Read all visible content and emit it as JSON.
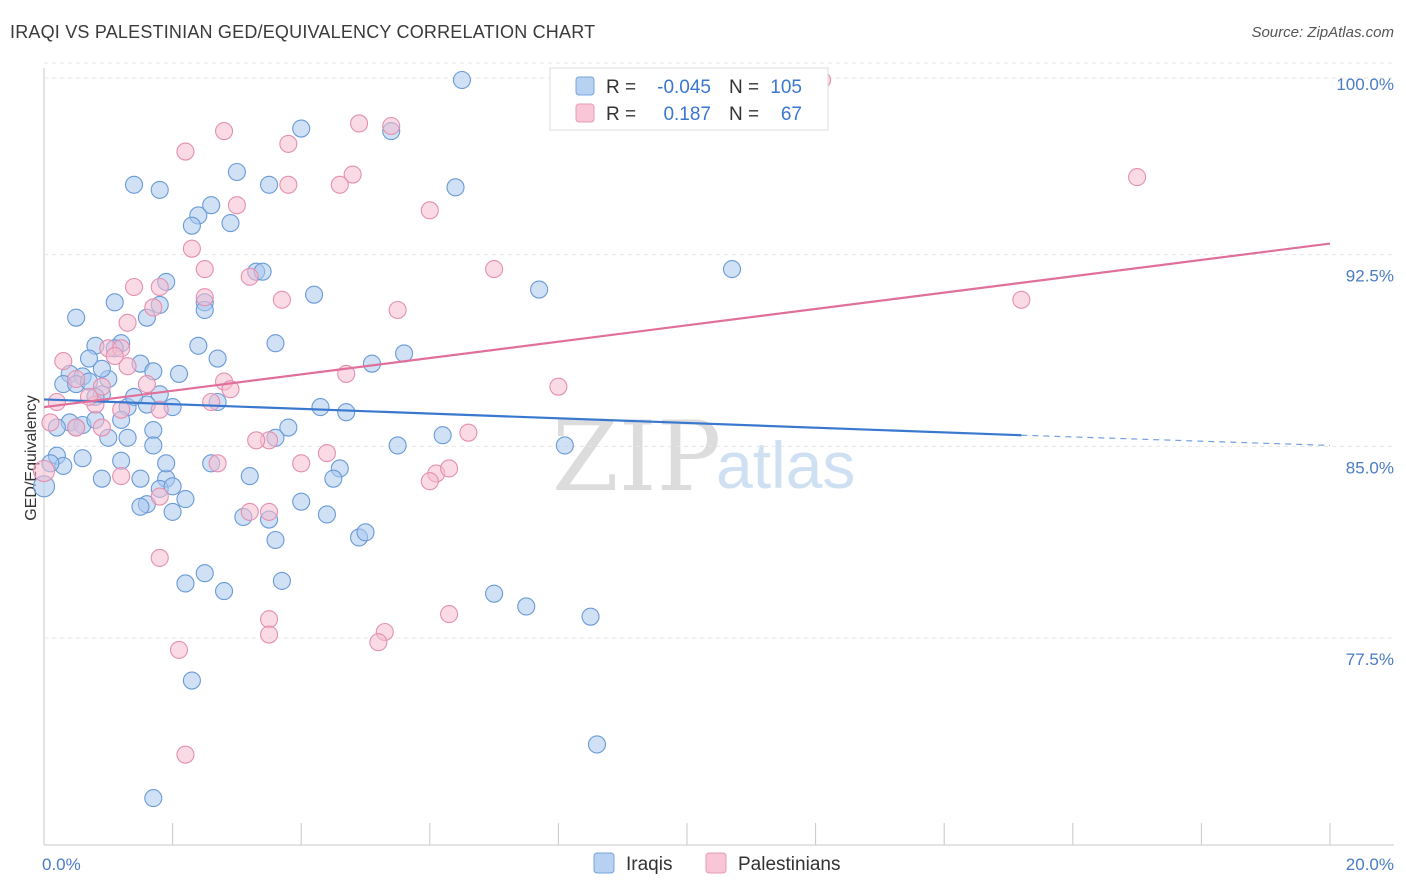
{
  "title": "IRAQI VS PALESTINIAN GED/EQUIVALENCY CORRELATION CHART",
  "source": "Source: ZipAtlas.com",
  "watermark": {
    "zip": "ZIP",
    "atlas": "atlas"
  },
  "colors": {
    "blue_fill": "#a9c8ee",
    "blue_stroke": "#6a9ad6",
    "blue_line": "#3a78cf",
    "pink_fill": "#f6bdd0",
    "pink_stroke": "#e48fb0",
    "pink_line": "#e0709a",
    "tick_text": "#4a7cc4"
  },
  "legend": {
    "rows": [
      {
        "r_label": "R = ",
        "r_value": "-0.045",
        "n_label": "N = ",
        "n_value": "105"
      },
      {
        "r_label": "R = ",
        "r_value": "0.187",
        "n_label": "N = ",
        "n_value": "67"
      }
    ]
  },
  "chart_data": {
    "type": "scatter",
    "title": "IRAQI VS PALESTINIAN GED/EQUIVALENCY CORRELATION CHART",
    "xlabel": "",
    "ylabel": "GED/Equivalency",
    "xlim": [
      0,
      20
    ],
    "ylim": [
      71,
      101.5
    ],
    "x_tick_labels": [
      "0.0%",
      "20.0%"
    ],
    "y_ticks": [
      77.5,
      85.0,
      92.5,
      100.0
    ],
    "y_tick_labels": [
      "77.5%",
      "85.0%",
      "92.5%",
      "100.0%"
    ],
    "grid": true,
    "legend_position": "top-center",
    "series": [
      {
        "name": "Iraqis",
        "color": "#6a9ad6",
        "trend": {
          "x0": 0,
          "y0": 87.5,
          "x1": 15.2,
          "y1": 86.1,
          "dash_to_x": 20,
          "dash_to_y": 85.7
        },
        "points": [
          [
            6.5,
            100
          ],
          [
            4.0,
            98.1
          ],
          [
            5.4,
            98.0
          ],
          [
            3.0,
            96.4
          ],
          [
            1.4,
            95.9
          ],
          [
            1.8,
            95.7
          ],
          [
            3.5,
            95.9
          ],
          [
            6.4,
            95.8
          ],
          [
            2.6,
            95.1
          ],
          [
            2.4,
            94.7
          ],
          [
            2.3,
            94.3
          ],
          [
            2.9,
            94.4
          ],
          [
            3.3,
            92.5
          ],
          [
            3.4,
            92.5
          ],
          [
            10.7,
            92.6
          ],
          [
            1.9,
            92.1
          ],
          [
            4.2,
            91.6
          ],
          [
            7.7,
            91.8
          ],
          [
            1.1,
            91.3
          ],
          [
            1.8,
            91.2
          ],
          [
            2.5,
            91.3
          ],
          [
            0.5,
            90.7
          ],
          [
            1.6,
            90.7
          ],
          [
            2.5,
            91.0
          ],
          [
            3.6,
            89.7
          ],
          [
            0.8,
            89.6
          ],
          [
            1.2,
            89.7
          ],
          [
            1.1,
            89.5
          ],
          [
            2.4,
            89.6
          ],
          [
            2.7,
            89.1
          ],
          [
            0.7,
            89.1
          ],
          [
            5.1,
            88.9
          ],
          [
            5.6,
            89.3
          ],
          [
            1.5,
            88.9
          ],
          [
            2.1,
            88.5
          ],
          [
            1.7,
            88.6
          ],
          [
            0.4,
            88.5
          ],
          [
            0.6,
            88.4
          ],
          [
            0.3,
            88.1
          ],
          [
            0.5,
            88.1
          ],
          [
            0.7,
            88.2
          ],
          [
            1.0,
            88.3
          ],
          [
            0.9,
            87.7
          ],
          [
            0.8,
            87.6
          ],
          [
            1.8,
            87.7
          ],
          [
            4.3,
            87.2
          ],
          [
            1.3,
            87.2
          ],
          [
            2.0,
            87.2
          ],
          [
            1.6,
            87.3
          ],
          [
            2.7,
            87.4
          ],
          [
            4.7,
            87.0
          ],
          [
            0.4,
            86.6
          ],
          [
            0.6,
            86.5
          ],
          [
            0.8,
            86.7
          ],
          [
            1.2,
            86.7
          ],
          [
            3.8,
            86.4
          ],
          [
            1.7,
            86.3
          ],
          [
            0.5,
            86.4
          ],
          [
            1.3,
            86.0
          ],
          [
            1.0,
            86.0
          ],
          [
            6.2,
            86.1
          ],
          [
            3.6,
            86.0
          ],
          [
            8.1,
            85.7
          ],
          [
            1.7,
            85.7
          ],
          [
            0.2,
            85.3
          ],
          [
            0.6,
            85.2
          ],
          [
            0.3,
            84.9
          ],
          [
            1.2,
            85.1
          ],
          [
            2.6,
            85.0
          ],
          [
            4.6,
            84.8
          ],
          [
            0.9,
            84.4
          ],
          [
            1.5,
            84.4
          ],
          [
            1.9,
            84.4
          ],
          [
            0.0,
            84.1
          ],
          [
            1.8,
            84.0
          ],
          [
            2.2,
            83.6
          ],
          [
            4.0,
            83.5
          ],
          [
            1.6,
            83.4
          ],
          [
            1.5,
            83.3
          ],
          [
            2.0,
            83.1
          ],
          [
            3.1,
            82.9
          ],
          [
            3.5,
            82.8
          ],
          [
            4.4,
            83.0
          ],
          [
            4.9,
            82.1
          ],
          [
            5.0,
            82.3
          ],
          [
            3.6,
            82.0
          ],
          [
            2.5,
            80.7
          ],
          [
            2.2,
            80.3
          ],
          [
            2.8,
            80.0
          ],
          [
            3.7,
            80.4
          ],
          [
            7.0,
            79.9
          ],
          [
            7.5,
            79.4
          ],
          [
            8.5,
            79.0
          ],
          [
            2.3,
            76.5
          ],
          [
            8.6,
            74.0
          ],
          [
            1.7,
            71.9
          ],
          [
            0.1,
            85.0
          ],
          [
            1.4,
            87.6
          ],
          [
            4.5,
            84.4
          ],
          [
            0.9,
            88.7
          ],
          [
            2.0,
            84.1
          ],
          [
            3.2,
            84.5
          ],
          [
            1.9,
            85.0
          ],
          [
            5.5,
            85.7
          ],
          [
            0.2,
            86.4
          ]
        ]
      },
      {
        "name": "Palestinians",
        "color": "#e48fb0",
        "trend": {
          "x0": 0,
          "y0": 87.2,
          "x1": 20,
          "y1": 93.6
        },
        "points": [
          [
            12.1,
            100
          ],
          [
            4.9,
            98.3
          ],
          [
            5.4,
            98.2
          ],
          [
            2.8,
            98.0
          ],
          [
            3.8,
            97.5
          ],
          [
            2.2,
            97.2
          ],
          [
            4.8,
            96.3
          ],
          [
            4.6,
            95.9
          ],
          [
            3.8,
            95.9
          ],
          [
            17.0,
            96.2
          ],
          [
            6.0,
            94.9
          ],
          [
            3.0,
            95.1
          ],
          [
            2.3,
            93.4
          ],
          [
            2.5,
            92.6
          ],
          [
            7.0,
            92.6
          ],
          [
            3.2,
            92.3
          ],
          [
            1.4,
            91.9
          ],
          [
            1.8,
            91.9
          ],
          [
            2.5,
            91.5
          ],
          [
            3.7,
            91.4
          ],
          [
            15.2,
            91.4
          ],
          [
            1.7,
            91.1
          ],
          [
            5.5,
            91.0
          ],
          [
            1.3,
            90.5
          ],
          [
            1.0,
            89.5
          ],
          [
            1.2,
            89.5
          ],
          [
            0.3,
            89.0
          ],
          [
            1.3,
            88.8
          ],
          [
            4.7,
            88.5
          ],
          [
            2.8,
            88.2
          ],
          [
            8.0,
            88.0
          ],
          [
            0.5,
            88.3
          ],
          [
            0.9,
            88.0
          ],
          [
            2.9,
            87.9
          ],
          [
            0.2,
            87.4
          ],
          [
            2.6,
            87.4
          ],
          [
            0.8,
            87.3
          ],
          [
            1.2,
            87.1
          ],
          [
            1.8,
            87.1
          ],
          [
            0.1,
            86.6
          ],
          [
            0.5,
            86.4
          ],
          [
            6.6,
            86.2
          ],
          [
            3.5,
            85.9
          ],
          [
            3.3,
            85.9
          ],
          [
            4.4,
            85.4
          ],
          [
            2.7,
            85.0
          ],
          [
            4.0,
            85.0
          ],
          [
            6.1,
            84.6
          ],
          [
            6.3,
            84.8
          ],
          [
            0.0,
            84.7
          ],
          [
            1.2,
            84.5
          ],
          [
            6.0,
            84.3
          ],
          [
            1.8,
            83.7
          ],
          [
            3.5,
            83.1
          ],
          [
            3.2,
            83.1
          ],
          [
            1.8,
            81.3
          ],
          [
            3.5,
            78.9
          ],
          [
            6.3,
            79.1
          ],
          [
            5.3,
            78.4
          ],
          [
            3.5,
            78.3
          ],
          [
            5.2,
            78.0
          ],
          [
            2.1,
            77.7
          ],
          [
            2.2,
            73.6
          ],
          [
            0.7,
            87.6
          ],
          [
            1.1,
            89.2
          ],
          [
            1.6,
            88.1
          ],
          [
            0.9,
            86.4
          ]
        ]
      }
    ]
  }
}
